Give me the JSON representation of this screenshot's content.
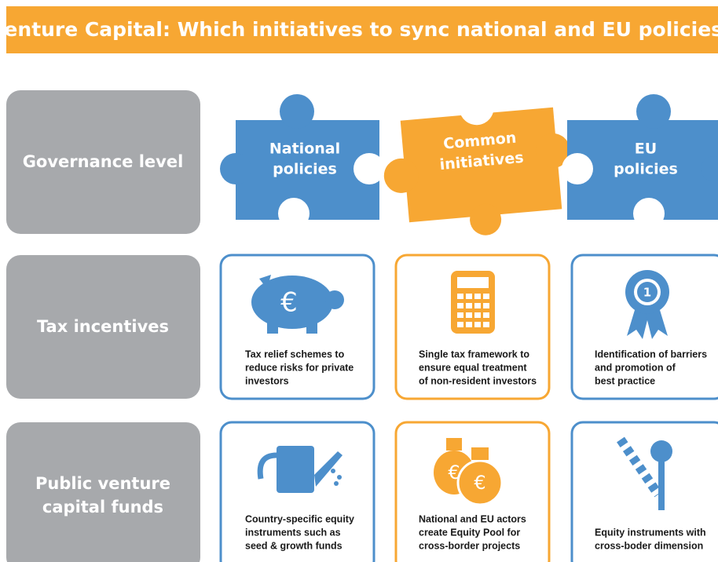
{
  "header": {
    "title": "Venture Capital: Which initiatives to sync national and EU policies?"
  },
  "rows": [
    {
      "label": [
        "Governance level"
      ]
    },
    {
      "label": [
        "Tax incentives"
      ]
    },
    {
      "label": [
        "Public venture",
        "capital funds"
      ]
    }
  ],
  "columns": [
    {
      "label": [
        "National",
        "policies"
      ]
    },
    {
      "label": [
        "Common",
        "initiatives"
      ]
    },
    {
      "label": [
        "EU",
        "policies"
      ]
    }
  ],
  "cells": [
    [
      [
        "Tax relief schemes to",
        "reduce risks for private",
        "investors"
      ],
      [
        "Single tax framework to",
        "ensure equal treatment",
        "of non-resident investors"
      ],
      [
        "Identification of barriers",
        "and promotion of",
        "best practice"
      ]
    ],
    [
      [
        "Country-specific equity",
        "instruments such as",
        "seed & growth funds"
      ],
      [
        "National and EU actors",
        "create Equity Pool for",
        "cross-border projects"
      ],
      [
        "Equity instruments with",
        "cross-boder dimension"
      ]
    ]
  ],
  "icons": {
    "euro": "€",
    "medal": "1"
  }
}
